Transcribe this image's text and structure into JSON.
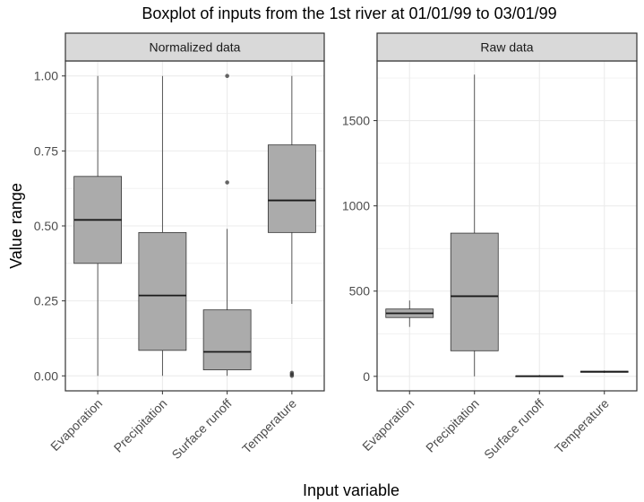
{
  "chart_data": {
    "type": "boxplot",
    "title": "Boxplot of inputs from the 1st river at 01/01/99 to 03/01/99",
    "xlabel": "Input variable",
    "ylabel": "Value range",
    "categories": [
      "Evaporation",
      "Precipitation",
      "Surface runoff",
      "Temperature"
    ],
    "grid": true,
    "colors": {
      "box_fill": "#ababab",
      "box_line": "#333333",
      "strip_bg": "#d9d9d9",
      "grid": "#ebebeb",
      "panel_border": "#333333"
    },
    "panels": [
      {
        "name": "Normalized data",
        "ylim": [
          -0.05,
          1.05
        ],
        "yticks": [
          0.0,
          0.25,
          0.5,
          0.75,
          1.0
        ],
        "ytick_labels": [
          "0.00",
          "0.25",
          "0.50",
          "0.75",
          "1.00"
        ],
        "boxes": [
          {
            "category": "Evaporation",
            "min": 0.0,
            "q1": 0.375,
            "median": 0.52,
            "q3": 0.665,
            "max": 1.0,
            "outliers": []
          },
          {
            "category": "Precipitation",
            "min": 0.0,
            "q1": 0.085,
            "median": 0.268,
            "q3": 0.478,
            "max": 1.0,
            "outliers": []
          },
          {
            "category": "Surface runoff",
            "min": 0.0,
            "q1": 0.02,
            "median": 0.08,
            "q3": 0.22,
            "max": 0.49,
            "outliers": [
              0.645,
              1.0
            ]
          },
          {
            "category": "Temperature",
            "min": 0.24,
            "q1": 0.478,
            "median": 0.585,
            "q3": 0.77,
            "max": 1.0,
            "outliers": [
              0.0,
              0.005,
              0.01
            ]
          }
        ]
      },
      {
        "name": "Raw data",
        "ylim": [
          -85,
          1850
        ],
        "yticks": [
          0,
          500,
          1000,
          1500
        ],
        "ytick_labels": [
          "0",
          "500",
          "1000",
          "1500"
        ],
        "boxes": [
          {
            "category": "Evaporation",
            "min": 290,
            "q1": 345,
            "median": 370,
            "q3": 395,
            "max": 445,
            "outliers": []
          },
          {
            "category": "Precipitation",
            "min": 0,
            "q1": 150,
            "median": 470,
            "q3": 840,
            "max": 1770,
            "outliers": []
          },
          {
            "category": "Surface runoff",
            "min": 0,
            "q1": 0,
            "median": 1,
            "q3": 3,
            "max": 8,
            "outliers": []
          },
          {
            "category": "Temperature",
            "min": 20,
            "q1": 24,
            "median": 27,
            "q3": 30,
            "max": 34,
            "outliers": []
          }
        ]
      }
    ]
  }
}
